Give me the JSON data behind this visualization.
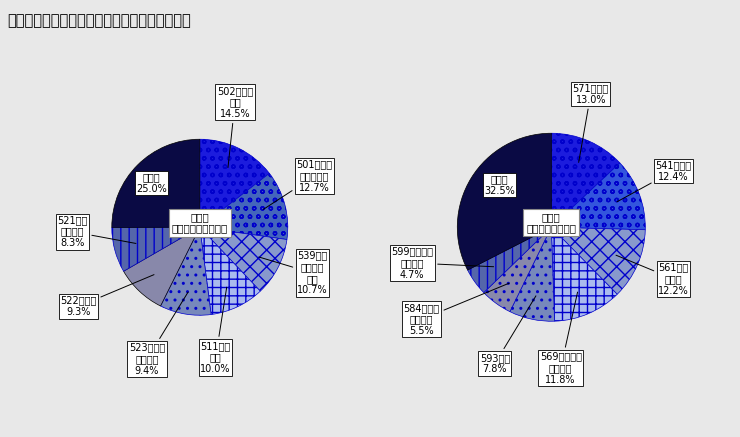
{
  "title": "図－４　年間商品販売額の産業小分類別構成比",
  "left_pie": {
    "center_label": "卐売業\n１０兆５８２３億円",
    "slices": [
      {
        "label": "502食料・\n飲料\n14.5%",
        "value": 14.5,
        "color": "#1a1aee",
        "hatch": "oo"
      },
      {
        "label": "501農畜産\n物・水産物\n12.7%",
        "value": 12.7,
        "color": "#4466cc",
        "hatch": "oo"
      },
      {
        "label": "539他に\n分類され\nない\n10.7%",
        "value": 10.7,
        "color": "#99aadd",
        "hatch": "xx"
      },
      {
        "label": "511建築\n材料\n10.0%",
        "value": 10.0,
        "color": "#aabbff",
        "hatch": "++"
      },
      {
        "label": "523電気機\n械　器具\n9.4%",
        "value": 9.4,
        "color": "#7788dd",
        "hatch": ".."
      },
      {
        "label": "522自動車\n9.3%",
        "value": 9.3,
        "color": "#9999cc",
        "hatch": ""
      },
      {
        "label": "521一般\n機械器具\n8.3%",
        "value": 8.3,
        "color": "#6677bb",
        "hatch": "||"
      },
      {
        "label": "その他\n25.0%",
        "value": 25.0,
        "color": "#0a0a55",
        "hatch": ""
      }
    ]
  },
  "right_pie": {
    "center_label": "小売業\n６兆４２８８億円",
    "slices": [
      {
        "label": "571自動車\n13.0%",
        "value": 13.0,
        "color": "#1a1aee",
        "hatch": "oo"
      },
      {
        "label": "541百貨店\n12.4%",
        "value": 12.4,
        "color": "#3355ee",
        "hatch": "oo"
      },
      {
        "label": "561各種\n食料品\n12.2%",
        "value": 12.2,
        "color": "#99aadd",
        "hatch": "xx"
      },
      {
        "label": "569その他の\n飲食料品\n11.8%",
        "value": 11.8,
        "color": "#aabbff",
        "hatch": "++"
      },
      {
        "label": "593燃料\n7.8%",
        "value": 7.8,
        "color": "#7788dd",
        "hatch": ".."
      },
      {
        "label": "584家庭用\n機械器具\n5.5%",
        "value": 5.5,
        "color": "#9999cc",
        "hatch": ".."
      },
      {
        "label": "599他に分類\nされない\n4.7%",
        "value": 4.7,
        "color": "#6677bb",
        "hatch": "||"
      },
      {
        "label": "その他\n32.5%",
        "value": 32.5,
        "color": "#0a0a55",
        "hatch": ""
      }
    ]
  },
  "bg_color": "#e8e8e8",
  "label_fontsize": 7.0,
  "title_fontsize": 10.5
}
